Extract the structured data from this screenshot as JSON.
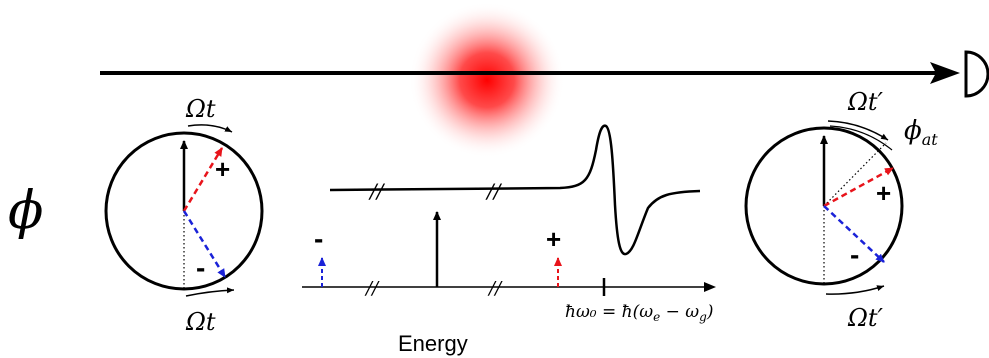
{
  "phase_symbol": "ϕ",
  "left_clock": {
    "rotation_top": "Ωt",
    "rotation_bottom": "Ωt",
    "plus_sign": "+",
    "minus_sign": "-"
  },
  "right_clock": {
    "rotation_top": "Ωt′",
    "rotation_bottom": "Ωt′",
    "phase_shift": "ϕ",
    "phase_shift_subscript": "at",
    "plus_sign": "+",
    "minus_sign": "-"
  },
  "spectrum": {
    "minus_sign": "-",
    "plus_sign": "+",
    "resonance_label": "ħω₀ = ħ(ω",
    "resonance_label_e": "e",
    "resonance_label_mid": " − ω",
    "resonance_label_g": "g",
    "resonance_label_end": ")",
    "axis_label": "Energy"
  },
  "colors": {
    "carrier": "#000000",
    "upper_sideband": "#e8141b",
    "lower_sideband": "#1a22d8",
    "atom_cloud": "#ff0000"
  },
  "icons": {
    "detector": "half-disc-detector-icon",
    "atom": "red-gaussian-atom-cloud"
  }
}
